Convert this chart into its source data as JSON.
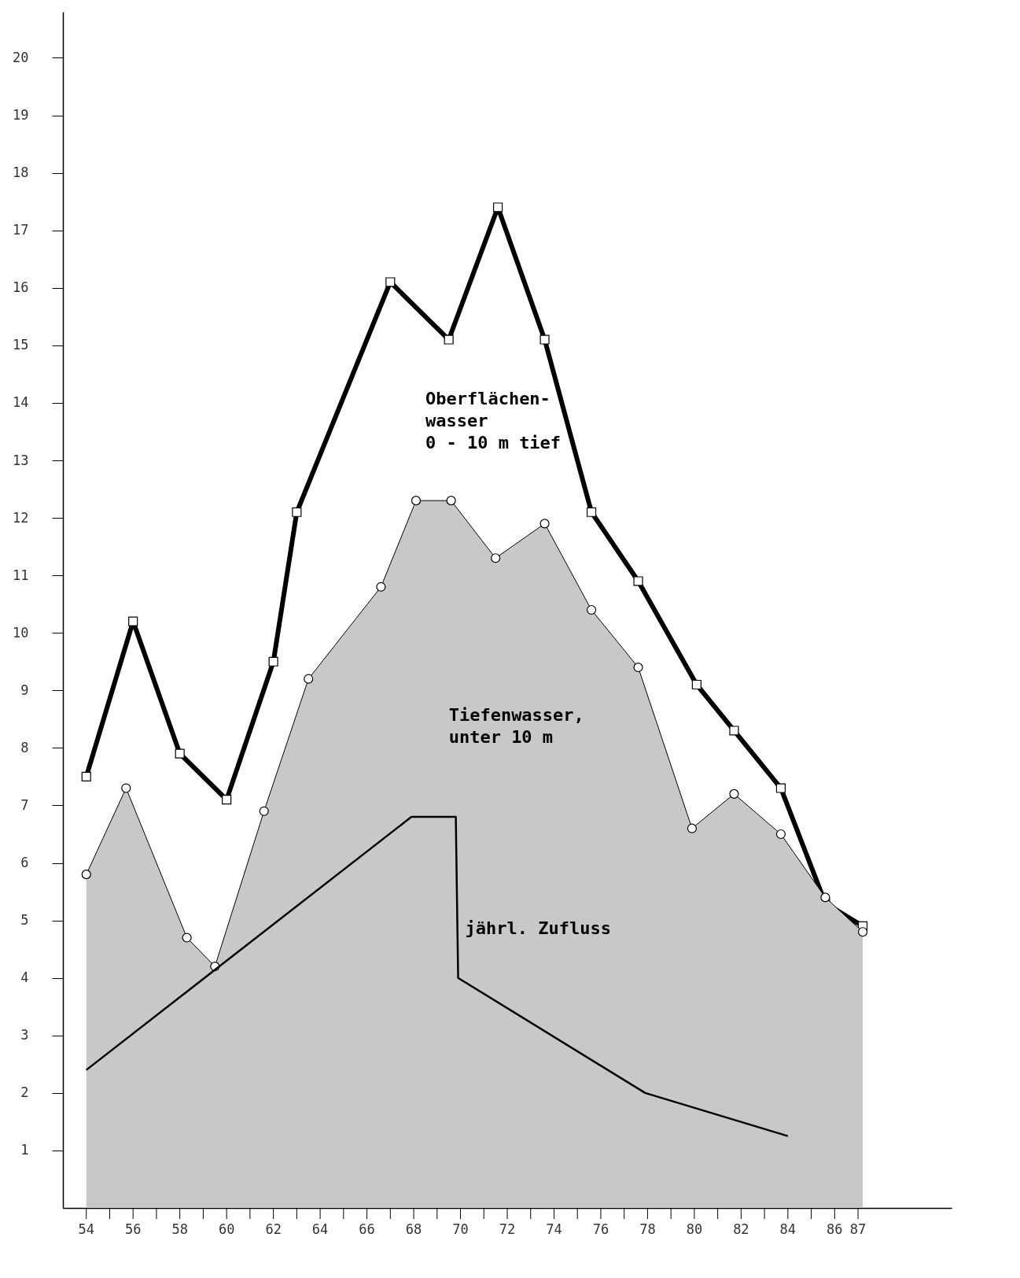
{
  "chart_data": {
    "type": "line",
    "xlim": [
      53,
      91
    ],
    "ylim": [
      0,
      20.8
    ],
    "xticks": [
      54,
      {
        "value": 55,
        "label": null
      },
      56,
      {
        "value": 57,
        "label": null
      },
      58,
      {
        "value": 59,
        "label": null
      },
      60,
      {
        "value": 61,
        "label": null
      },
      62,
      {
        "value": 63,
        "label": null
      },
      64,
      {
        "value": 65,
        "label": null
      },
      66,
      {
        "value": 67,
        "label": null
      },
      68,
      {
        "value": 69,
        "label": null
      },
      70,
      {
        "value": 71,
        "label": null
      },
      72,
      {
        "value": 73,
        "label": null
      },
      74,
      {
        "value": 75,
        "label": null
      },
      76,
      {
        "value": 77,
        "label": null
      },
      78,
      {
        "value": 79,
        "label": null
      },
      80,
      {
        "value": 81,
        "label": null
      },
      82,
      {
        "value": 83,
        "label": null
      },
      84,
      {
        "value": 85,
        "label": null
      },
      86,
      87
    ],
    "yticks": [
      1,
      2,
      3,
      4,
      5,
      6,
      7,
      8,
      9,
      10,
      11,
      12,
      13,
      14,
      15,
      16,
      17,
      18,
      19,
      20
    ],
    "grid": false,
    "series": [
      {
        "name": "Oberflächen-\nwasser\n0 - 10 m tief",
        "marker": "square",
        "color": "#000000",
        "x": [
          54,
          56,
          58,
          60,
          62,
          63,
          67,
          69.5,
          71.6,
          73.6,
          75.6,
          77.6,
          80.1,
          81.7,
          83.7,
          85.6,
          87.2
        ],
        "values": [
          7.5,
          10.2,
          7.9,
          7.1,
          9.5,
          12.1,
          16.1,
          15.1,
          17.4,
          15.1,
          12.1,
          10.9,
          9.1,
          8.3,
          7.3,
          5.3,
          4.9
        ]
      },
      {
        "name": "Tiefenwasser,\nunter 10 m",
        "type": "area",
        "marker": "circle",
        "color": "#c8c8c8",
        "x": [
          54,
          55.7,
          58.3,
          59.5,
          61.6,
          63.5,
          66.6,
          68.1,
          69.6,
          71.5,
          73.6,
          75.6,
          77.6,
          79.9,
          81.7,
          83.7,
          85.6,
          87.2
        ],
        "values": [
          5.8,
          7.3,
          4.7,
          4.2,
          6.9,
          9.2,
          10.8,
          12.3,
          12.3,
          11.3,
          11.9,
          10.4,
          9.4,
          6.6,
          7.2,
          6.5,
          5.4,
          4.8
        ]
      },
      {
        "name": "jährl. Zufluss",
        "marker": "none",
        "color": "#000000",
        "x": [
          54,
          67.9,
          69.8,
          69.9,
          77.9,
          84
        ],
        "values": [
          2.4,
          6.8,
          6.8,
          4.0,
          2.0,
          1.25
        ]
      }
    ]
  }
}
